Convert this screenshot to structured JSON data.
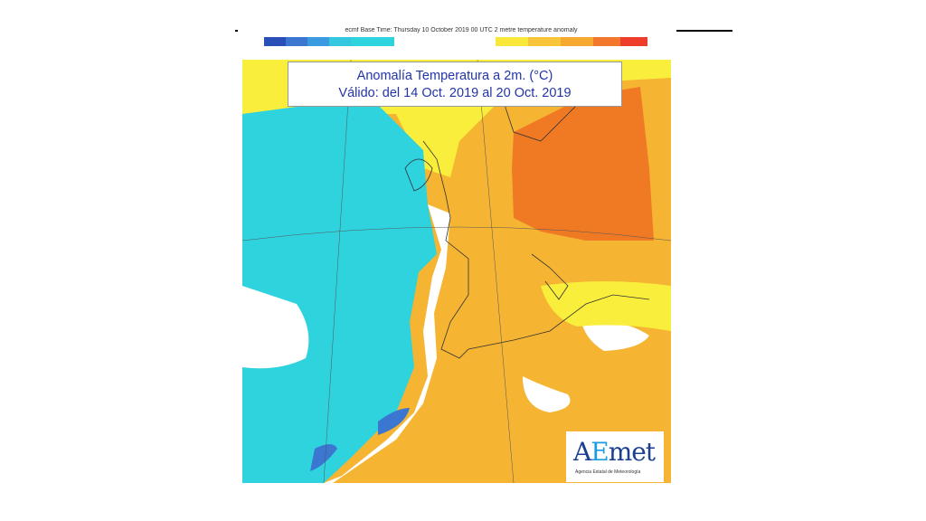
{
  "header": {
    "info": "ecmf  Base Time: Thursday 10 October 2019 00 UTC 2 metre temperature anomaly"
  },
  "scale": {
    "cold_colors": [
      "#2b4fb8",
      "#3b76d0",
      "#3a9be0",
      "#33c8df"
    ],
    "cold_ticks": [
      "-10",
      "-6",
      "-4",
      "-2",
      "-1"
    ],
    "warm_colors": [
      "#f9e83a",
      "#f8c43a",
      "#f7a831",
      "#f4772e",
      "#ee3d2b"
    ],
    "warm_ticks": [
      "1",
      "2",
      "4",
      "6",
      "8",
      "10"
    ]
  },
  "title": {
    "line1": "Anomalía Temperatura a 2m. (°C)",
    "line2": "Válido: del 14 Oct. 2019 al 20 Oct. 2019"
  },
  "logo": {
    "brand_a": "A",
    "brand_e": "E",
    "brand_rest": "met",
    "subtitle": "Agencia Estatal de Meteorología"
  },
  "colors": {
    "cold": "#2ed3de",
    "neutral": "#ffffff",
    "mild_warm": "#f9ee3c",
    "warm": "#f5b533",
    "hot": "#f07a24"
  }
}
